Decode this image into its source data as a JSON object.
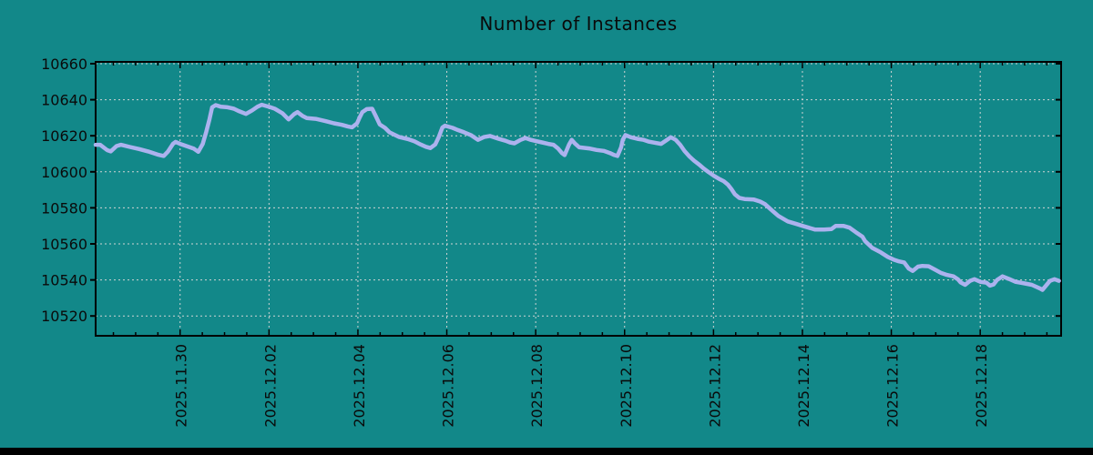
{
  "page": {
    "background_color": "#128889",
    "bottom_bar_color": "#000000",
    "text_color": "#0a0a0a"
  },
  "chart_data": {
    "type": "line",
    "title": "Number of Instances",
    "grid": true,
    "grid_style": "dashed",
    "grid_color": "#cfd4d4",
    "axis_color": "#000000",
    "legend": "none",
    "x_unit": "days since 2025.11.28 00:00 (read from axis tick labels)",
    "x_range_days": [
      0.1,
      21.82
    ],
    "x_tick_days": [
      2,
      4,
      6,
      8,
      10,
      12,
      14,
      16,
      18,
      20
    ],
    "x_tick_labels": [
      "2025.11.30",
      "2025.12.02",
      "2025.12.04",
      "2025.12.06",
      "2025.12.08",
      "2025.12.10",
      "2025.12.12",
      "2025.12.14",
      "2025.12.16",
      "2025.12.18"
    ],
    "x_minor_tick_step_days": 0.5,
    "ylabel": "",
    "xlabel": "",
    "y_ticks": [
      10520,
      10540,
      10560,
      10580,
      10600,
      10620,
      10640,
      10660
    ],
    "y_range": [
      10509,
      10661
    ],
    "series": [
      {
        "name": "instances",
        "color": "#acb2ee",
        "points": [
          [
            0.1,
            10615
          ],
          [
            0.2,
            10615
          ],
          [
            0.36,
            10612
          ],
          [
            0.44,
            10611.3
          ],
          [
            0.57,
            10614.3
          ],
          [
            0.67,
            10615
          ],
          [
            0.87,
            10613.8
          ],
          [
            1.08,
            10612.6
          ],
          [
            1.28,
            10611.3
          ],
          [
            1.49,
            10609.6
          ],
          [
            1.63,
            10608.8
          ],
          [
            1.73,
            10611.3
          ],
          [
            1.84,
            10615.5
          ],
          [
            1.9,
            10616.6
          ],
          [
            2.0,
            10615.5
          ],
          [
            2.14,
            10614.3
          ],
          [
            2.31,
            10612.8
          ],
          [
            2.41,
            10611.1
          ],
          [
            2.51,
            10615.5
          ],
          [
            2.59,
            10622.3
          ],
          [
            2.66,
            10629
          ],
          [
            2.72,
            10635.8
          ],
          [
            2.8,
            10637
          ],
          [
            2.92,
            10636.1
          ],
          [
            3.07,
            10635.8
          ],
          [
            3.21,
            10635
          ],
          [
            3.31,
            10633.8
          ],
          [
            3.48,
            10632.1
          ],
          [
            3.62,
            10634.1
          ],
          [
            3.74,
            10636.1
          ],
          [
            3.84,
            10637.2
          ],
          [
            4.01,
            10636
          ],
          [
            4.13,
            10635
          ],
          [
            4.3,
            10632.5
          ],
          [
            4.44,
            10629.1
          ],
          [
            4.56,
            10631.9
          ],
          [
            4.64,
            10633.1
          ],
          [
            4.75,
            10631.1
          ],
          [
            4.85,
            10629.8
          ],
          [
            5.05,
            10629.4
          ],
          [
            5.28,
            10628.1
          ],
          [
            5.46,
            10626.9
          ],
          [
            5.63,
            10626.1
          ],
          [
            5.77,
            10625.2
          ],
          [
            5.87,
            10624.7
          ],
          [
            5.98,
            10626.9
          ],
          [
            6.04,
            10630.2
          ],
          [
            6.1,
            10633.1
          ],
          [
            6.2,
            10634.8
          ],
          [
            6.32,
            10635
          ],
          [
            6.4,
            10631
          ],
          [
            6.49,
            10626.3
          ],
          [
            6.61,
            10624.4
          ],
          [
            6.71,
            10621.9
          ],
          [
            6.92,
            10619.4
          ],
          [
            7.12,
            10618.2
          ],
          [
            7.27,
            10616.9
          ],
          [
            7.41,
            10615.2
          ],
          [
            7.53,
            10613.9
          ],
          [
            7.63,
            10613.2
          ],
          [
            7.74,
            10615.2
          ],
          [
            7.82,
            10619.4
          ],
          [
            7.9,
            10624.6
          ],
          [
            7.96,
            10625.6
          ],
          [
            8.13,
            10624.4
          ],
          [
            8.25,
            10623.2
          ],
          [
            8.39,
            10621.9
          ],
          [
            8.54,
            10620.4
          ],
          [
            8.7,
            10617.7
          ],
          [
            8.84,
            10619.3
          ],
          [
            8.97,
            10619.9
          ],
          [
            9.17,
            10618.3
          ],
          [
            9.32,
            10617.2
          ],
          [
            9.42,
            10616.3
          ],
          [
            9.52,
            10615.8
          ],
          [
            9.66,
            10617.7
          ],
          [
            9.77,
            10618.8
          ],
          [
            9.89,
            10617.7
          ],
          [
            10.01,
            10617
          ],
          [
            10.14,
            10616.3
          ],
          [
            10.28,
            10615.5
          ],
          [
            10.4,
            10615
          ],
          [
            10.5,
            10613
          ],
          [
            10.59,
            10610.4
          ],
          [
            10.65,
            10609.3
          ],
          [
            10.75,
            10615.2
          ],
          [
            10.81,
            10617.7
          ],
          [
            10.89,
            10615.5
          ],
          [
            10.98,
            10613.6
          ],
          [
            11.2,
            10613
          ],
          [
            11.37,
            10612.1
          ],
          [
            11.53,
            10611.6
          ],
          [
            11.67,
            10610.4
          ],
          [
            11.77,
            10609.3
          ],
          [
            11.84,
            10608.8
          ],
          [
            11.92,
            10613.6
          ],
          [
            11.96,
            10617.8
          ],
          [
            12.02,
            10620.4
          ],
          [
            12.14,
            10619.2
          ],
          [
            12.29,
            10618.3
          ],
          [
            12.43,
            10617.7
          ],
          [
            12.55,
            10616.7
          ],
          [
            12.7,
            10616
          ],
          [
            12.82,
            10615.5
          ],
          [
            12.96,
            10617.8
          ],
          [
            13.04,
            10619.2
          ],
          [
            13.15,
            10617.7
          ],
          [
            13.25,
            10615
          ],
          [
            13.35,
            10611.5
          ],
          [
            13.46,
            10608.5
          ],
          [
            13.56,
            10606.2
          ],
          [
            13.68,
            10604
          ],
          [
            13.78,
            10601.8
          ],
          [
            13.89,
            10599.8
          ],
          [
            14.01,
            10597.8
          ],
          [
            14.13,
            10596
          ],
          [
            14.23,
            10594.8
          ],
          [
            14.32,
            10593
          ],
          [
            14.4,
            10590.5
          ],
          [
            14.48,
            10587.5
          ],
          [
            14.58,
            10585.5
          ],
          [
            14.7,
            10584.9
          ],
          [
            14.91,
            10584.6
          ],
          [
            15.05,
            10583.5
          ],
          [
            15.16,
            10582
          ],
          [
            15.32,
            10578.5
          ],
          [
            15.46,
            10575.5
          ],
          [
            15.67,
            10572.5
          ],
          [
            15.87,
            10571
          ],
          [
            16.0,
            10570
          ],
          [
            16.14,
            10569
          ],
          [
            16.28,
            10568
          ],
          [
            16.49,
            10568
          ],
          [
            16.65,
            10568.2
          ],
          [
            16.75,
            10570
          ],
          [
            16.92,
            10570
          ],
          [
            17.06,
            10569
          ],
          [
            17.2,
            10566.5
          ],
          [
            17.35,
            10564
          ],
          [
            17.41,
            10561.5
          ],
          [
            17.57,
            10557.8
          ],
          [
            17.76,
            10555.3
          ],
          [
            17.92,
            10552.8
          ],
          [
            18.05,
            10551.3
          ],
          [
            18.17,
            10550.3
          ],
          [
            18.29,
            10549.7
          ],
          [
            18.39,
            10546.3
          ],
          [
            18.48,
            10545
          ],
          [
            18.6,
            10547.4
          ],
          [
            18.7,
            10547.8
          ],
          [
            18.84,
            10547.6
          ],
          [
            18.99,
            10545.6
          ],
          [
            19.11,
            10544
          ],
          [
            19.25,
            10542.8
          ],
          [
            19.4,
            10542
          ],
          [
            19.5,
            10540.3
          ],
          [
            19.56,
            10538.6
          ],
          [
            19.66,
            10537.3
          ],
          [
            19.77,
            10539.5
          ],
          [
            19.87,
            10540.4
          ],
          [
            20.01,
            10538.9
          ],
          [
            20.14,
            10538.5
          ],
          [
            20.22,
            10536.8
          ],
          [
            20.3,
            10537.5
          ],
          [
            20.38,
            10540
          ],
          [
            20.5,
            10542
          ],
          [
            20.65,
            10540.5
          ],
          [
            20.79,
            10539
          ],
          [
            20.95,
            10538.3
          ],
          [
            21.16,
            10537.3
          ],
          [
            21.34,
            10535.3
          ],
          [
            21.4,
            10534.5
          ],
          [
            21.57,
            10539.5
          ],
          [
            21.67,
            10540.4
          ],
          [
            21.77,
            10539.5
          ]
        ]
      }
    ]
  }
}
